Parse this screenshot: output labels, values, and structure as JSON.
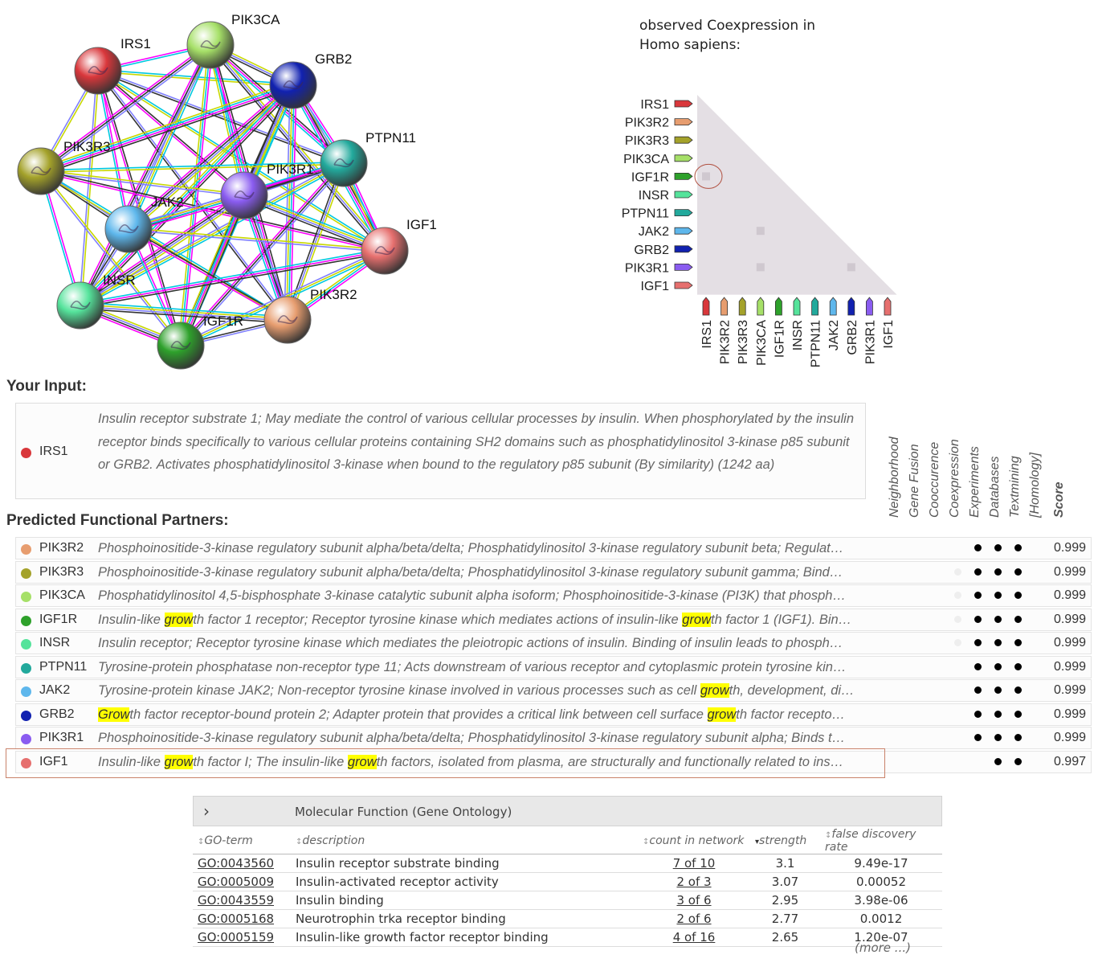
{
  "colors": {
    "IRS1": "#d9373b",
    "PIK3R2": "#e79d6f",
    "PIK3R3": "#a4a22a",
    "PIK3CA": "#a6e068",
    "IGF1R": "#2ea12b",
    "INSR": "#55e39b",
    "PTPN11": "#22a99c",
    "JAK2": "#5eb7ec",
    "GRB2": "#1121b0",
    "PIK3R1": "#8a5cf0",
    "IGF1": "#e66f6e",
    "highlight": "#ffff00",
    "evidence_dot": "#000000"
  },
  "network": {
    "nodes": [
      {
        "id": "IRS1",
        "label": "IRS1"
      },
      {
        "id": "PIK3CA",
        "label": "PIK3CA"
      },
      {
        "id": "GRB2",
        "label": "GRB2"
      },
      {
        "id": "PIK3R3",
        "label": "PIK3R3"
      },
      {
        "id": "PTPN11",
        "label": "PTPN11"
      },
      {
        "id": "PIK3R1",
        "label": "PIK3R1"
      },
      {
        "id": "JAK2",
        "label": "JAK2"
      },
      {
        "id": "IGF1",
        "label": "IGF1"
      },
      {
        "id": "INSR",
        "label": "INSR"
      },
      {
        "id": "PIK3R2",
        "label": "PIK3R2"
      },
      {
        "id": "IGF1R",
        "label": "IGF1R"
      }
    ]
  },
  "coexpression": {
    "title_line1": "observed Coexpression in",
    "title_line2": "Homo sapiens:",
    "genes": [
      "IRS1",
      "PIK3R2",
      "PIK3R3",
      "PIK3CA",
      "IGF1R",
      "INSR",
      "PTPN11",
      "JAK2",
      "GRB2",
      "PIK3R1",
      "IGF1"
    ],
    "highlighted_cells": [
      {
        "row": "IGF1R",
        "col": "IRS1"
      },
      {
        "row": "JAK2",
        "col": "PIK3CA"
      },
      {
        "row": "PIK3R1",
        "col": "PIK3CA"
      },
      {
        "row": "PIK3R1",
        "col": "GRB2"
      }
    ],
    "circled": {
      "row": "IGF1R",
      "col": "IRS1"
    }
  },
  "your_input": {
    "heading": "Your Input:",
    "gene": "IRS1",
    "description": "Insulin receptor substrate 1; May mediate the control of various cellular processes by insulin. When phosphorylated by the insulin receptor binds specifically to various cellular proteins containing SH2 domains such as phosphatidylinositol 3-kinase p85 subunit or GRB2. Activates phosphatidylinositol 3-kinase when bound to the regulatory p85 subunit (By similarity) (1242 aa)"
  },
  "partners": {
    "heading": "Predicted Functional Partners:",
    "evidence_columns": [
      "Neighborhood",
      "Gene Fusion",
      "Cooccurence",
      "Coexpression",
      "Experiments",
      "Databases",
      "Textmining",
      "[Homology]",
      "Score"
    ],
    "rows": [
      {
        "gene": "PIK3R2",
        "desc": "Phosphoinositide-3-kinase regulatory subunit alpha/beta/delta; Phosphatidylinositol 3-kinase regulatory subunit beta; Regulat…",
        "coexp": "none",
        "score": "0.999"
      },
      {
        "gene": "PIK3R3",
        "desc": "Phosphoinositide-3-kinase regulatory subunit alpha/beta/delta; Phosphatidylinositol 3-kinase regulatory subunit gamma; Bind…",
        "coexp": "faint",
        "score": "0.999"
      },
      {
        "gene": "PIK3CA",
        "desc": "Phosphatidylinositol 4,5-bisphosphate 3-kinase catalytic subunit alpha isoform; Phosphoinositide-3-kinase (PI3K) that phosph…",
        "coexp": "faint",
        "score": "0.999"
      },
      {
        "gene": "IGF1R",
        "desc": "Insulin-like growth factor 1 receptor; Receptor tyrosine kinase which mediates actions of insulin-like growth factor 1 (IGF1). Bin…",
        "coexp": "faint",
        "score": "0.999"
      },
      {
        "gene": "INSR",
        "desc": "Insulin receptor; Receptor tyrosine kinase which mediates the pleiotropic actions of insulin. Binding of insulin leads to phosph…",
        "coexp": "faint",
        "score": "0.999"
      },
      {
        "gene": "PTPN11",
        "desc": "Tyrosine-protein phosphatase non-receptor type 11; Acts downstream of various receptor and cytoplasmic protein tyrosine kin…",
        "coexp": "none",
        "score": "0.999"
      },
      {
        "gene": "JAK2",
        "desc": "Tyrosine-protein kinase JAK2; Non-receptor tyrosine kinase involved in various processes such as cell growth, development, di…",
        "coexp": "none",
        "score": "0.999"
      },
      {
        "gene": "GRB2",
        "desc": "Growth factor receptor-bound protein 2; Adapter protein that provides a critical link between cell surface growth factor recepto…",
        "coexp": "none",
        "score": "0.999"
      },
      {
        "gene": "PIK3R1",
        "desc": "Phosphoinositide-3-kinase regulatory subunit alpha/beta/delta; Phosphatidylinositol 3-kinase regulatory subunit alpha; Binds t…",
        "coexp": "none",
        "score": "0.999"
      },
      {
        "gene": "IGF1",
        "desc": "Insulin-like growth factor I; The insulin-like growth factors, isolated from plasma, are structurally and functionally related to ins…",
        "coexp": "none",
        "experiments": false,
        "score": "0.997"
      }
    ],
    "highlight_term": "grow"
  },
  "go": {
    "section_title": "Molecular Function (Gene Ontology)",
    "columns": [
      "GO-term",
      "description",
      "count in network",
      "strength",
      "false discovery rate"
    ],
    "rows": [
      {
        "term": "GO:0043560",
        "description": "Insulin receptor substrate binding",
        "count": "7 of 10",
        "strength": "3.1",
        "fdr": "9.49e-17"
      },
      {
        "term": "GO:0005009",
        "description": "Insulin-activated receptor activity",
        "count": "2 of 3",
        "strength": "3.07",
        "fdr": "0.00052"
      },
      {
        "term": "GO:0043559",
        "description": "Insulin binding",
        "count": "3 of 6",
        "strength": "2.95",
        "fdr": "3.98e-06"
      },
      {
        "term": "GO:0005168",
        "description": "Neurotrophin trka receptor binding",
        "count": "2 of 6",
        "strength": "2.77",
        "fdr": "0.0012"
      },
      {
        "term": "GO:0005159",
        "description": "Insulin-like growth factor receptor binding",
        "count": "4 of 16",
        "strength": "2.65",
        "fdr": "1.20e-07"
      }
    ],
    "more_link": "(more ...)"
  }
}
